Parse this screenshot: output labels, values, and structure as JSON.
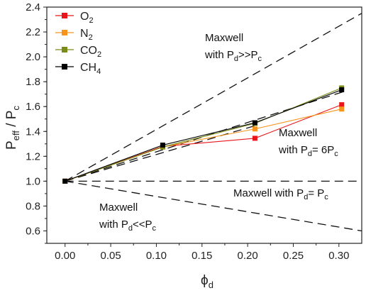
{
  "chart_data": {
    "type": "line",
    "xlabel": {
      "main": "ϕ",
      "sub": "d"
    },
    "ylabel": {
      "p1": "P",
      "s1": "eff",
      "p2": " / P",
      "s2": "c"
    },
    "xlim": [
      -0.02,
      0.325
    ],
    "ylim": [
      0.5,
      2.4
    ],
    "xticks": [
      "0.00",
      "0.05",
      "0.10",
      "0.15",
      "0.20",
      "0.25",
      "0.30"
    ],
    "yticks": [
      "0.6",
      "0.8",
      "1.0",
      "1.2",
      "1.4",
      "1.6",
      "1.8",
      "2.0",
      "2.2",
      "2.4"
    ],
    "x": [
      0,
      0.107,
      0.208,
      0.303
    ],
    "series": [
      {
        "name": {
          "base": "O",
          "sub": "2"
        },
        "color": "#e8161b",
        "values": [
          1.0,
          1.28,
          1.345,
          1.615
        ]
      },
      {
        "name": {
          "base": "N",
          "sub": "2"
        },
        "color": "#f7941d",
        "values": [
          1.0,
          1.275,
          1.42,
          1.58
        ]
      },
      {
        "name": {
          "base": "CO",
          "sub": "2"
        },
        "color": "#7b8b1a",
        "values": [
          1.0,
          1.275,
          1.465,
          1.75
        ]
      },
      {
        "name": {
          "base": "CH",
          "sub": "4"
        },
        "color": "#000000",
        "values": [
          1.0,
          1.29,
          1.47,
          1.735
        ]
      }
    ],
    "models": [
      {
        "label": "Pd>>Pc",
        "style": "dashed",
        "x": [
          0,
          0.325
        ],
        "y": [
          1.0,
          2.35
        ]
      },
      {
        "label": "Pd=6Pc upper",
        "style": "dashed",
        "x": [
          0,
          0.305
        ],
        "y": [
          1.0,
          1.72
        ]
      },
      {
        "label": "Pd=6Pc lower",
        "style": "dashed",
        "x": [
          0,
          0.21
        ],
        "y": [
          1.0,
          1.45
        ]
      },
      {
        "label": "Pd=Pc",
        "style": "dashed",
        "x": [
          0,
          0.325
        ],
        "y": [
          1.0,
          1.0
        ]
      },
      {
        "label": "Pd<<Pc",
        "style": "dashed",
        "x": [
          0,
          0.325
        ],
        "y": [
          1.0,
          0.6
        ]
      }
    ],
    "annotations": [
      {
        "l1": "Maxwell",
        "l2a": "with P",
        "l2s1": "d",
        "l2b": ">>P",
        "l2s2": "c"
      },
      {
        "l1": "Maxwell",
        "l2a": "with P",
        "l2s1": "d",
        "l2b": "= 6P",
        "l2s2": "c"
      },
      {
        "l1": "",
        "l2a": "Maxwell with P",
        "l2s1": "d",
        "l2b": "= P",
        "l2s2": "c"
      },
      {
        "l1": "Maxwell",
        "l2a": "with P",
        "l2s1": "d",
        "l2b": "<<P",
        "l2s2": "c"
      }
    ],
    "legend_position": "top-left",
    "grid": false
  }
}
